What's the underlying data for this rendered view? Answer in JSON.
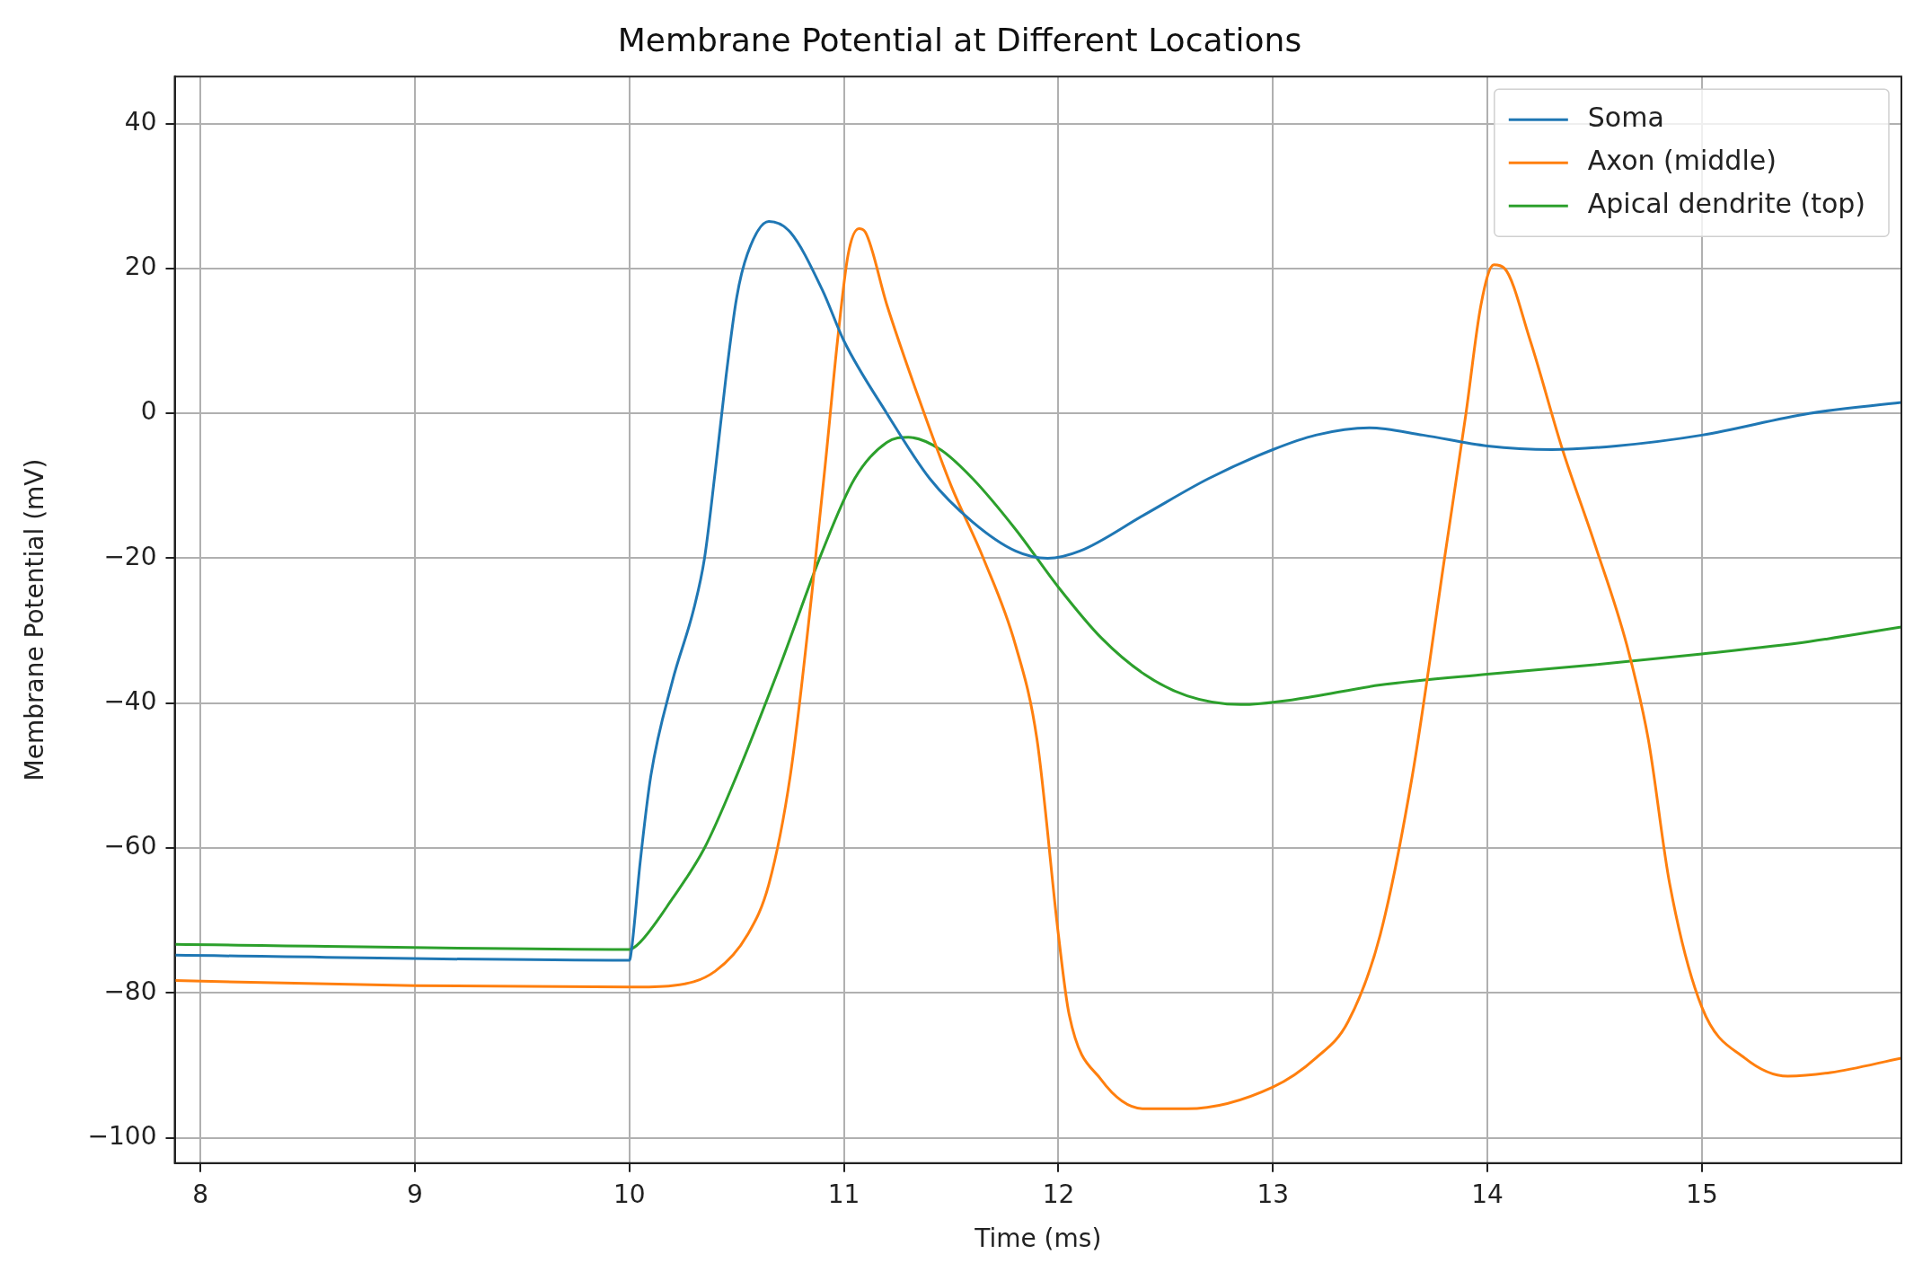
{
  "chart_data": {
    "type": "line",
    "title": "Membrane Potential at Different Locations",
    "xlabel": "Time (ms)",
    "ylabel": "Membrane Potential (mV)",
    "xlim": [
      7.88,
      15.93
    ],
    "ylim": [
      -103.5,
      46.5
    ],
    "xticks": [
      8,
      9,
      10,
      11,
      12,
      13,
      14,
      15
    ],
    "yticks": [
      {
        "value": -100,
        "label": "−100"
      },
      {
        "value": -80,
        "label": "−80"
      },
      {
        "value": -60,
        "label": "−60"
      },
      {
        "value": -40,
        "label": "−40"
      },
      {
        "value": -20,
        "label": "−20"
      },
      0,
      20,
      40
    ],
    "grid": true,
    "legend": "top right",
    "marker": "none",
    "line_style": "solid",
    "series": [
      {
        "name": "Soma",
        "color": "#1f77b4",
        "x": [
          7.88,
          10,
          10.01,
          10.05,
          10.1,
          10.2,
          10.3,
          10.35,
          10.4,
          10.45,
          10.5,
          10.55,
          10.65,
          10.75,
          10.9,
          11,
          11.2,
          11.4,
          11.6,
          11.8,
          11.95,
          12.1,
          12.4,
          12.7,
          13,
          13.2,
          13.45,
          13.7,
          14,
          14.3,
          14.6,
          15,
          15.5,
          15.93
        ],
        "values": [
          -74.8,
          -75.5,
          -74,
          -62,
          -50,
          -37,
          -27,
          -20,
          -8,
          5,
          16,
          22,
          26.5,
          25,
          17,
          10,
          0,
          -9,
          -15,
          -19,
          -20,
          -19,
          -14,
          -9,
          -5,
          -3,
          -2,
          -3,
          -4.5,
          -5,
          -4.5,
          -3,
          0,
          1.5
        ]
      },
      {
        "name": "Axon (middle)",
        "color": "#ff7f0e",
        "x": [
          7.88,
          9,
          10,
          10.2,
          10.4,
          10.55,
          10.65,
          10.75,
          10.85,
          10.92,
          10.97,
          11.02,
          11.07,
          11.1,
          11.2,
          11.35,
          11.5,
          11.65,
          11.8,
          11.9,
          12,
          12.05,
          12.2,
          12.4,
          12.6,
          13,
          13.2,
          13.35,
          13.5,
          13.65,
          13.8,
          13.9,
          13.97,
          14.03,
          14.08,
          14.2,
          14.35,
          14.5,
          14.65,
          14.75,
          14.85,
          15,
          15.2,
          15.4,
          15.6,
          15.93
        ],
        "values": [
          -78.3,
          -79,
          -79.2,
          -79,
          -77,
          -72,
          -65,
          -50,
          -25,
          -5,
          10,
          22,
          25.5,
          25,
          15,
          2,
          -10,
          -20,
          -32,
          -45,
          -72,
          -83,
          -92,
          -96,
          -96,
          -93,
          -89,
          -84,
          -72,
          -50,
          -20,
          0,
          15,
          20.5,
          20,
          10,
          -5,
          -18,
          -32,
          -45,
          -65,
          -82,
          -89,
          -91.5,
          -91,
          -89
        ]
      },
      {
        "name": "Apical dendrite (top)",
        "color": "#2ca02c",
        "x": [
          7.88,
          10,
          10.05,
          10.2,
          10.35,
          10.5,
          10.7,
          10.9,
          11.05,
          11.2,
          11.3,
          11.45,
          11.6,
          11.8,
          12,
          12.2,
          12.4,
          12.6,
          12.85,
          13.1,
          13.5,
          14,
          14.5,
          15,
          15.5,
          15.93
        ],
        "values": [
          -73.3,
          -74,
          -73,
          -67,
          -60,
          -50,
          -35,
          -19,
          -9,
          -4,
          -3.3,
          -5,
          -9,
          -16,
          -24,
          -31,
          -36,
          -39,
          -40.2,
          -39.5,
          -37.5,
          -36,
          -34.7,
          -33.2,
          -31.5,
          -29.5
        ]
      }
    ]
  }
}
